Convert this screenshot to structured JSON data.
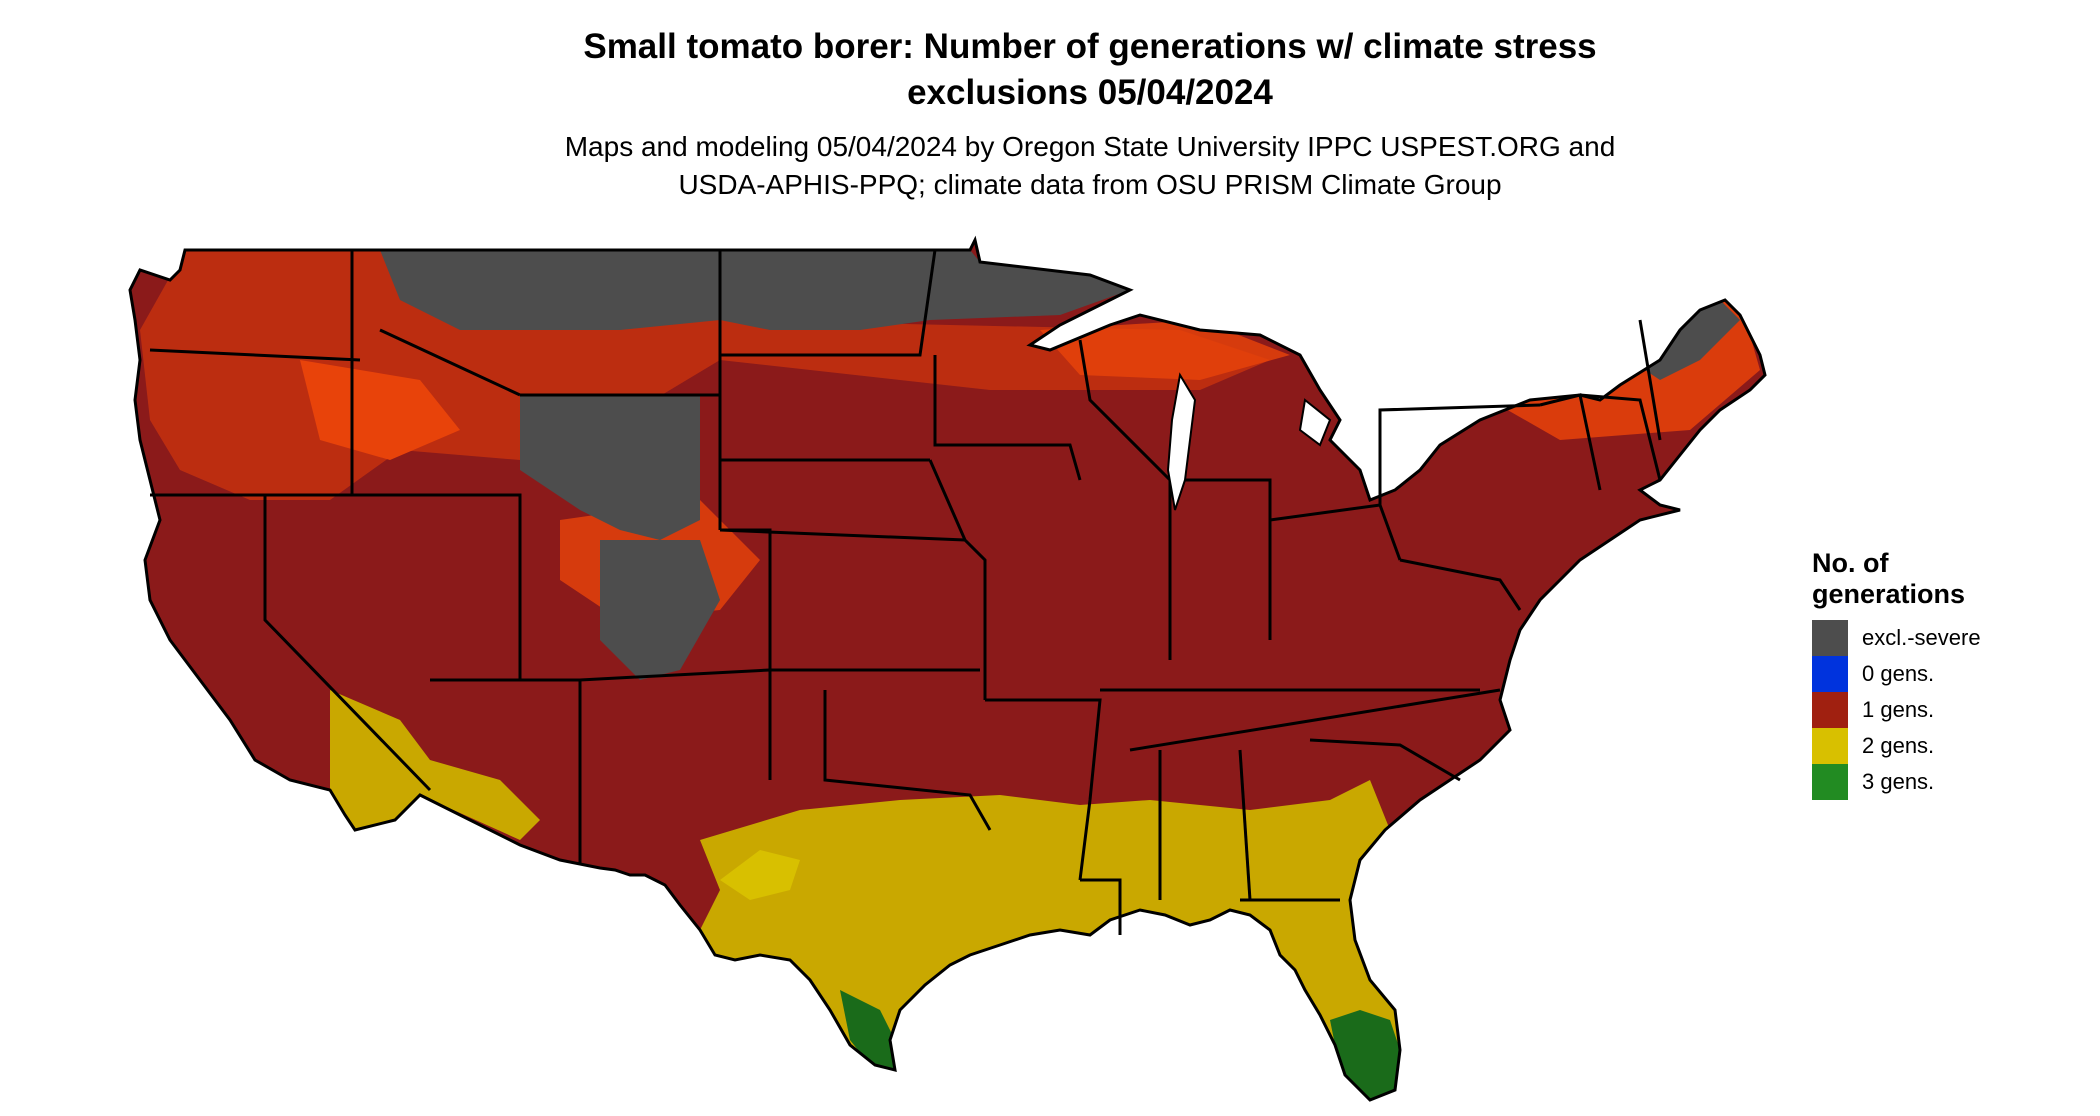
{
  "title": {
    "line1": "Small tomato borer: Number of generations w/ climate stress",
    "line2": "exclusions 05/04/2024"
  },
  "subtitle": {
    "line1": "Maps and modeling 05/04/2024 by Oregon State University IPPC USPEST.ORG and",
    "line2": "USDA-APHIS-PPQ; climate data from OSU PRISM Climate Group"
  },
  "legend": {
    "title_line1": "No. of",
    "title_line2": "generations",
    "items": [
      {
        "label": "excl.-severe",
        "color": "#4d4d4d"
      },
      {
        "label": "0 gens.",
        "color": "#0033dd"
      },
      {
        "label": "1 gens.",
        "color": "#a02010"
      },
      {
        "label": "2 gens.",
        "color": "#d8c000"
      },
      {
        "label": "3 gens.",
        "color": "#228b22"
      }
    ]
  },
  "map_colors": {
    "excl_severe": "#4d4d4d",
    "one_gen": "#8b1a1a",
    "one_gen_high": "#e8430a",
    "two_gen": "#c9a800",
    "three_gen": "#1a6b1a",
    "border": "#000000"
  }
}
